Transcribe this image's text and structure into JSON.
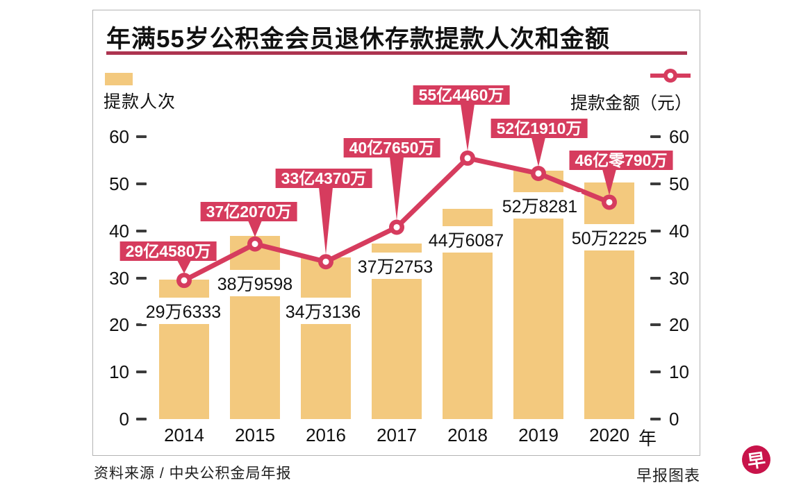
{
  "header": {
    "title": "年满55岁公积金会员退休存款提款人次和金额"
  },
  "legend": {
    "bars_label": "提款人次",
    "line_label": "提款金额（元）"
  },
  "footer": {
    "source": "资料来源 / 中央公积金局年报",
    "credit": "早报图表",
    "logo_char": "早"
  },
  "colors": {
    "bar": "#F3C97E",
    "line": "#D63C5E",
    "underline": "#AD3450",
    "logo": "#C8134A",
    "tick": "#3c3c3c"
  },
  "chart_data": {
    "type": "bar+line",
    "title": "年满55岁公积金会员退休存款提款人次和金额",
    "categories": [
      "2014",
      "2015",
      "2016",
      "2017",
      "2018",
      "2019",
      "2020"
    ],
    "x_suffix": "年",
    "ylim": [
      0,
      60
    ],
    "yticks": [
      0,
      10,
      20,
      30,
      40,
      50,
      60
    ],
    "grid": false,
    "legend_position": "top",
    "series": [
      {
        "name": "提款人次",
        "type": "bar",
        "axis": "left",
        "unit": "万人次",
        "values": [
          29.6333,
          38.9598,
          34.3136,
          37.2753,
          44.6087,
          52.8281,
          50.2225
        ],
        "labels": [
          "29万6333",
          "38万9598",
          "34万3136",
          "37万2753",
          "44万6087",
          "52万8281",
          "50万2225"
        ]
      },
      {
        "name": "提款金额（元）",
        "type": "line",
        "axis": "right",
        "unit": "亿元",
        "values": [
          29.458,
          37.207,
          33.437,
          40.765,
          55.446,
          52.191,
          46.079
        ],
        "labels": [
          "29亿4580万",
          "37亿2070万",
          "33亿4370万",
          "40亿7650万",
          "55亿4460万",
          "52亿1910万",
          "46亿零790万"
        ]
      }
    ]
  }
}
